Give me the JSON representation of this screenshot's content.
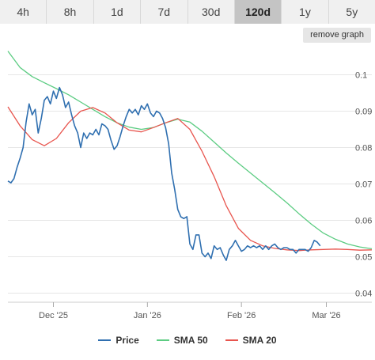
{
  "timeframes": [
    "4h",
    "8h",
    "1d",
    "7d",
    "30d",
    "120d",
    "1y",
    "5y"
  ],
  "active_timeframe": "120d",
  "remove_graph_label": "remove graph",
  "colors": {
    "price": "#2f6fb0",
    "sma50": "#5ccc82",
    "sma20": "#e8554e",
    "grid": "#e6e6e6"
  },
  "chart_data": {
    "type": "line",
    "x_axis": {
      "range_days": [
        0,
        120
      ],
      "ticks": [
        {
          "day": 15,
          "label": "Dec '25"
        },
        {
          "day": 46,
          "label": "Jan '26"
        },
        {
          "day": 77,
          "label": "Feb '26"
        },
        {
          "day": 105,
          "label": "Mar '26"
        }
      ]
    },
    "y_axis": {
      "range": [
        0.0375,
        0.1075
      ],
      "ticks": [
        0.04,
        0.05,
        0.06,
        0.07,
        0.08,
        0.09,
        0.1
      ],
      "tick_labels": [
        "0.04",
        "0.05",
        "0.06",
        "0.07",
        "0.08",
        "0.09",
        "0.1"
      ],
      "position": "right"
    },
    "grid": true,
    "legend": "bottom",
    "series": [
      {
        "name": "Price",
        "color_key": "price",
        "points": [
          [
            0,
            0.0708
          ],
          [
            1,
            0.0703
          ],
          [
            2,
            0.0715
          ],
          [
            3,
            0.0745
          ],
          [
            4,
            0.077
          ],
          [
            5,
            0.08
          ],
          [
            6,
            0.087
          ],
          [
            7,
            0.092
          ],
          [
            8,
            0.089
          ],
          [
            9,
            0.0905
          ],
          [
            10,
            0.084
          ],
          [
            11,
            0.088
          ],
          [
            12,
            0.093
          ],
          [
            13,
            0.094
          ],
          [
            14,
            0.092
          ],
          [
            15,
            0.0955
          ],
          [
            16,
            0.0935
          ],
          [
            17,
            0.0965
          ],
          [
            18,
            0.0945
          ],
          [
            19,
            0.091
          ],
          [
            20,
            0.0925
          ],
          [
            21,
            0.089
          ],
          [
            22,
            0.086
          ],
          [
            23,
            0.084
          ],
          [
            24,
            0.08
          ],
          [
            25,
            0.084
          ],
          [
            26,
            0.0825
          ],
          [
            27,
            0.084
          ],
          [
            28,
            0.0835
          ],
          [
            29,
            0.085
          ],
          [
            30,
            0.0835
          ],
          [
            31,
            0.0865
          ],
          [
            32,
            0.086
          ],
          [
            33,
            0.085
          ],
          [
            34,
            0.082
          ],
          [
            35,
            0.0795
          ],
          [
            36,
            0.0805
          ],
          [
            37,
            0.083
          ],
          [
            38,
            0.086
          ],
          [
            39,
            0.0885
          ],
          [
            40,
            0.0905
          ],
          [
            41,
            0.0895
          ],
          [
            42,
            0.0905
          ],
          [
            43,
            0.089
          ],
          [
            44,
            0.0915
          ],
          [
            45,
            0.0905
          ],
          [
            46,
            0.092
          ],
          [
            47,
            0.0895
          ],
          [
            48,
            0.0885
          ],
          [
            49,
            0.09
          ],
          [
            50,
            0.0895
          ],
          [
            51,
            0.088
          ],
          [
            52,
            0.0855
          ],
          [
            53,
            0.081
          ],
          [
            54,
            0.073
          ],
          [
            55,
            0.0685
          ],
          [
            56,
            0.063
          ],
          [
            57,
            0.061
          ],
          [
            58,
            0.0605
          ],
          [
            59,
            0.061
          ],
          [
            60,
            0.0535
          ],
          [
            61,
            0.052
          ],
          [
            62,
            0.056
          ],
          [
            63,
            0.056
          ],
          [
            64,
            0.051
          ],
          [
            65,
            0.05
          ],
          [
            66,
            0.051
          ],
          [
            67,
            0.0495
          ],
          [
            68,
            0.053
          ],
          [
            69,
            0.052
          ],
          [
            70,
            0.0525
          ],
          [
            71,
            0.0505
          ],
          [
            72,
            0.049
          ],
          [
            73,
            0.052
          ],
          [
            74,
            0.053
          ],
          [
            75,
            0.0545
          ],
          [
            76,
            0.053
          ],
          [
            77,
            0.0515
          ],
          [
            78,
            0.052
          ],
          [
            79,
            0.053
          ],
          [
            80,
            0.0525
          ],
          [
            81,
            0.053
          ],
          [
            82,
            0.0525
          ],
          [
            83,
            0.053
          ],
          [
            84,
            0.052
          ],
          [
            85,
            0.053
          ],
          [
            86,
            0.052
          ],
          [
            87,
            0.053
          ],
          [
            88,
            0.0535
          ],
          [
            89,
            0.0525
          ],
          [
            90,
            0.052
          ],
          [
            91,
            0.0525
          ],
          [
            92,
            0.0525
          ],
          [
            93,
            0.052
          ],
          [
            94,
            0.052
          ],
          [
            95,
            0.051
          ],
          [
            96,
            0.052
          ],
          [
            97,
            0.052
          ],
          [
            98,
            0.052
          ],
          [
            99,
            0.0515
          ],
          [
            100,
            0.0525
          ],
          [
            101,
            0.0545
          ],
          [
            102,
            0.054
          ],
          [
            103,
            0.053
          ]
        ]
      },
      {
        "name": "SMA 50",
        "color_key": "sma50",
        "points": [
          [
            0,
            0.1065
          ],
          [
            4,
            0.102
          ],
          [
            8,
            0.0995
          ],
          [
            12,
            0.0978
          ],
          [
            16,
            0.0962
          ],
          [
            20,
            0.0945
          ],
          [
            24,
            0.0925
          ],
          [
            28,
            0.0905
          ],
          [
            32,
            0.0885
          ],
          [
            36,
            0.0868
          ],
          [
            40,
            0.0856
          ],
          [
            44,
            0.085
          ],
          [
            48,
            0.0855
          ],
          [
            52,
            0.0868
          ],
          [
            56,
            0.0878
          ],
          [
            60,
            0.087
          ],
          [
            64,
            0.0845
          ],
          [
            68,
            0.0815
          ],
          [
            72,
            0.0785
          ],
          [
            76,
            0.0757
          ],
          [
            80,
            0.073
          ],
          [
            84,
            0.0703
          ],
          [
            88,
            0.0676
          ],
          [
            92,
            0.0648
          ],
          [
            96,
            0.0618
          ],
          [
            100,
            0.059
          ],
          [
            104,
            0.0565
          ],
          [
            108,
            0.0548
          ],
          [
            112,
            0.0535
          ],
          [
            116,
            0.0527
          ],
          [
            120,
            0.0522
          ]
        ]
      },
      {
        "name": "SMA 20",
        "color_key": "sma20",
        "points": [
          [
            0,
            0.0912
          ],
          [
            4,
            0.086
          ],
          [
            8,
            0.0822
          ],
          [
            12,
            0.0805
          ],
          [
            16,
            0.0825
          ],
          [
            20,
            0.0868
          ],
          [
            24,
            0.09
          ],
          [
            28,
            0.091
          ],
          [
            32,
            0.0895
          ],
          [
            36,
            0.0868
          ],
          [
            40,
            0.0848
          ],
          [
            44,
            0.0843
          ],
          [
            48,
            0.0855
          ],
          [
            52,
            0.0868
          ],
          [
            56,
            0.088
          ],
          [
            60,
            0.085
          ],
          [
            64,
            0.079
          ],
          [
            68,
            0.072
          ],
          [
            72,
            0.064
          ],
          [
            76,
            0.0578
          ],
          [
            80,
            0.0545
          ],
          [
            84,
            0.053
          ],
          [
            88,
            0.0523
          ],
          [
            92,
            0.0519
          ],
          [
            96,
            0.0517
          ],
          [
            100,
            0.0519
          ],
          [
            104,
            0.052
          ],
          [
            108,
            0.0521
          ],
          [
            112,
            0.052
          ],
          [
            116,
            0.0518
          ],
          [
            120,
            0.0519
          ]
        ]
      }
    ]
  }
}
